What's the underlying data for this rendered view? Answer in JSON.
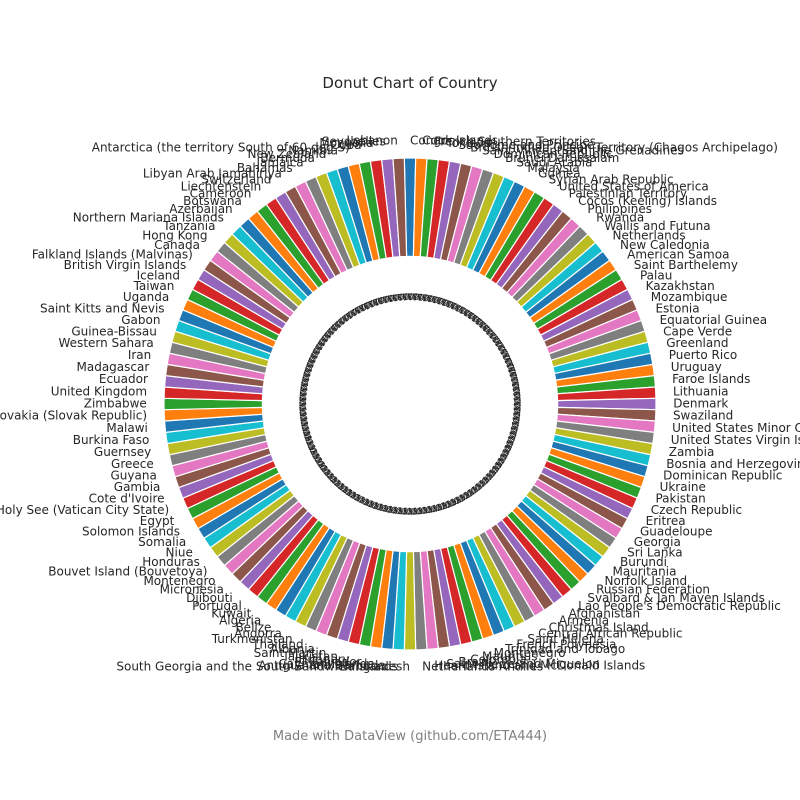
{
  "chart_data": {
    "type": "pie",
    "title": "Donut Chart of Country",
    "hole": 0.6,
    "palette": [
      "#1f77b4",
      "#ff7f0e",
      "#2ca02c",
      "#d62728",
      "#9467bd",
      "#8c564b",
      "#e377c2",
      "#7f7f7f",
      "#bcbd22",
      "#17becf"
    ],
    "categories": [
      "Congo",
      "Cook Islands",
      "French Southern Territories",
      "Tokelau",
      "Sao Tome and Principe",
      "British Indian Ocean Territory (Chagos Archipelago)",
      "Saint Vincent and the Grenadines",
      "Dominican Republic",
      "Brunei Darussalam",
      "Saudi Arabia",
      "Malaysia",
      "Guinea",
      "Syrian Arab Republic",
      "United States of America",
      "Palestinian Territory",
      "Cocos (Keeling) Islands",
      "Philippines",
      "Rwanda",
      "Wallis and Futuna",
      "Netherlands",
      "New Caledonia",
      "American Samoa",
      "Saint Barthelemy",
      "Palau",
      "Kazakhstan",
      "Mozambique",
      "Estonia",
      "Equatorial Guinea",
      "Cape Verde",
      "Greenland",
      "Puerto Rico",
      "Uruguay",
      "Faroe Islands",
      "Lithuania",
      "Denmark",
      "Swaziland",
      "United States Minor Outlying Islands",
      "United States Virgin Islands",
      "Zambia",
      "Bosnia and Herzegovina",
      "Dominican Republic",
      "Ukraine",
      "Pakistan",
      "Czech Republic",
      "Eritrea",
      "Guadeloupe",
      "Georgia",
      "Sri Lanka",
      "Burundi",
      "Mauritania",
      "Norfolk Island",
      "Russian Federation",
      "Svalbard & Jan Mayen Islands",
      "Lao People's Democratic Republic",
      "Afghanistan",
      "Armenia",
      "Christmas Island",
      "Central African Republic",
      "Saint Helena",
      "French Polynesia",
      "Trinidad and Tobago",
      "Montenegro",
      "Mauritius",
      "Colombia",
      "Brazil",
      "Saint Pierre and Miquelon",
      "Heard Island and McDonald Islands",
      "Netherlands Antilles",
      "Bangladesh",
      "South Georgia and the South Sandwich Islands",
      "Antigua and Barbuda",
      "Cayman Islands",
      "El Salvador",
      "Hungary",
      "Tajikistan",
      "Saint Martin",
      "Albania",
      "Thailand",
      "Turkmenistan",
      "Andorra",
      "Belize",
      "Algeria",
      "Kuwait",
      "Portugal",
      "Djibouti",
      "Micronesia",
      "Montenegro",
      "Bouvet Island (Bouvetoya)",
      "Honduras",
      "Niue",
      "Somalia",
      "Solomon Islands",
      "Egypt",
      "Holy See (Vatican City State)",
      "Cote d'Ivoire",
      "Gambia",
      "Guyana",
      "Greece",
      "Guernsey",
      "Burkina Faso",
      "Malawi",
      "Slovakia (Slovak Republic)",
      "Zimbabwe",
      "United Kingdom",
      "Ecuador",
      "Madagascar",
      "Iran",
      "Western Sahara",
      "Guinea-Bissau",
      "Gabon",
      "Saint Kitts and Nevis",
      "Uganda",
      "Taiwan",
      "Iceland",
      "British Virgin Islands",
      "Falkland Islands (Malvinas)",
      "Canada",
      "Hong Kong",
      "Tanzania",
      "Northern Mariana Islands",
      "Azerbaijan",
      "Botswana",
      "Cameroon",
      "Liechtenstein",
      "Switzerland",
      "Libyan Arab Jamahiriya",
      "Bahamas",
      "Jamaica",
      "Bermuda",
      "New Zealand",
      "Namibia",
      "Antarctica (the territory South of 60 deg S)",
      "Cuba",
      "Mongolia",
      "Seychelles",
      "Lebanon"
    ],
    "values": [
      1,
      1,
      1,
      1,
      1,
      1,
      1,
      1,
      1,
      1,
      1,
      1,
      1,
      1,
      1,
      1,
      1,
      1,
      1,
      1,
      1,
      1,
      1,
      1,
      1,
      1,
      1,
      1,
      1,
      1,
      1,
      1,
      1,
      1,
      1,
      1,
      1,
      1,
      1,
      1,
      1,
      1,
      1,
      1,
      1,
      1,
      1,
      1,
      1,
      1,
      1,
      1,
      1,
      1,
      1,
      1,
      1,
      1,
      1,
      1,
      1,
      1,
      1,
      1,
      1,
      1,
      1,
      1,
      1,
      1,
      1,
      1,
      1,
      1,
      1,
      1,
      1,
      1,
      1,
      1,
      1,
      1,
      1,
      1,
      1,
      1,
      1,
      1,
      1,
      1,
      1,
      1,
      1,
      1,
      1,
      1,
      1,
      1,
      1,
      1,
      1,
      1,
      1,
      1,
      1,
      1,
      1,
      1,
      1,
      1,
      1,
      1,
      1,
      1,
      1,
      1,
      1,
      1,
      1,
      1,
      1,
      1,
      1,
      1,
      1,
      1,
      1,
      1,
      1,
      1,
      1,
      1,
      1,
      1,
      1,
      1
    ]
  },
  "footer": "Made with DataView (github.com/ETA444)"
}
